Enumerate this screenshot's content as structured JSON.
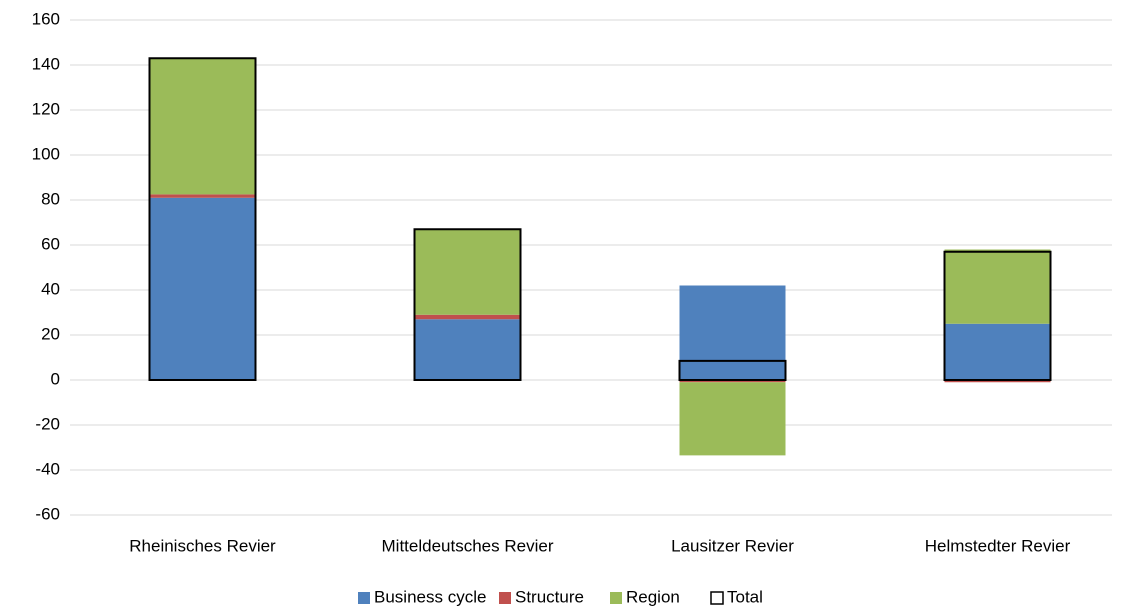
{
  "chart_data": {
    "type": "stacked_bar",
    "categories": [
      "Rheinisches Revier",
      "Mitteldeutsches Revier",
      "Lausitzer Revier",
      "Helmstedter Revier"
    ],
    "series": [
      {
        "name": "Business cycle",
        "color": "#4f81bd",
        "values": [
          81,
          27,
          42,
          25
        ]
      },
      {
        "name": "Structure",
        "color": "#c0504d",
        "values": [
          1.5,
          2,
          -1,
          -1
        ]
      },
      {
        "name": "Region",
        "color": "#9bbb59",
        "values": [
          60.5,
          38,
          -32.5,
          33
        ]
      }
    ],
    "total": {
      "name": "Total",
      "color": "#000000",
      "values": [
        143,
        67,
        8.5,
        57
      ]
    },
    "ylim": [
      -60,
      160
    ],
    "yticks": [
      -60,
      -40,
      -20,
      0,
      20,
      40,
      60,
      80,
      100,
      120,
      140,
      160
    ],
    "grid": true,
    "legend": "bottom"
  }
}
